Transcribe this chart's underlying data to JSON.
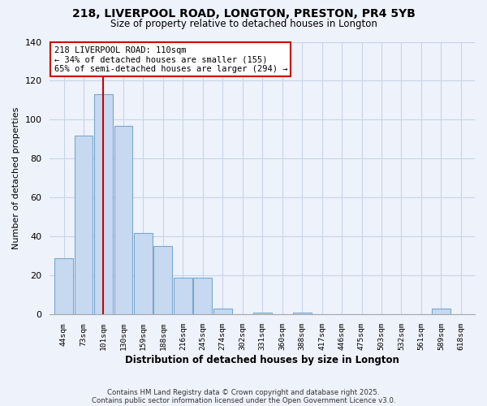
{
  "title_line1": "218, LIVERPOOL ROAD, LONGTON, PRESTON, PR4 5YB",
  "title_line2": "Size of property relative to detached houses in Longton",
  "bar_labels": [
    "44sqm",
    "73sqm",
    "101sqm",
    "130sqm",
    "159sqm",
    "188sqm",
    "216sqm",
    "245sqm",
    "274sqm",
    "302sqm",
    "331sqm",
    "360sqm",
    "388sqm",
    "417sqm",
    "446sqm",
    "475sqm",
    "503sqm",
    "532sqm",
    "561sqm",
    "589sqm",
    "618sqm"
  ],
  "bar_heights": [
    29,
    92,
    113,
    97,
    42,
    35,
    19,
    19,
    3,
    0,
    1,
    0,
    1,
    0,
    0,
    0,
    0,
    0,
    0,
    3,
    0
  ],
  "bar_color": "#c6d9f0",
  "bar_edge_color": "#7ba7cc",
  "vline_x": 2,
  "vline_color": "#cc0000",
  "ylabel": "Number of detached properties",
  "xlabel": "Distribution of detached houses by size in Longton",
  "ylim": [
    0,
    140
  ],
  "yticks": [
    0,
    20,
    40,
    60,
    80,
    100,
    120,
    140
  ],
  "annotation_title": "218 LIVERPOOL ROAD: 110sqm",
  "annotation_line2": "← 34% of detached houses are smaller (155)",
  "annotation_line3": "65% of semi-detached houses are larger (294) →",
  "annotation_box_color": "#ffffff",
  "annotation_box_edge": "#cc0000",
  "footnote1": "Contains HM Land Registry data © Crown copyright and database right 2025.",
  "footnote2": "Contains public sector information licensed under the Open Government Licence v3.0.",
  "bg_color": "#eef2fb",
  "grid_color": "#c8d4e8"
}
